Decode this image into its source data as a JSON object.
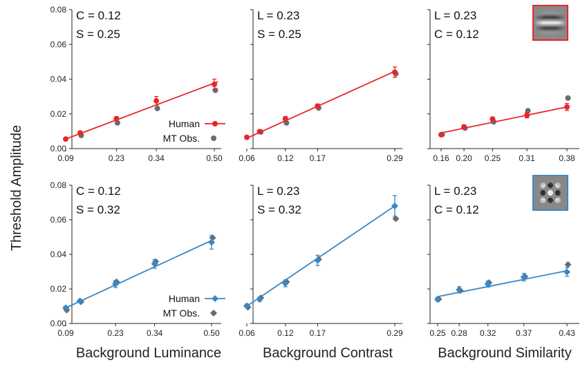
{
  "figure": {
    "ylabel": "Threshold Amplitude",
    "colors": {
      "red": "#e8262a",
      "blue": "#3a87c4",
      "gray": "#6b6b6b"
    }
  },
  "chart_data": [
    {
      "type": "scatter",
      "xlabel": "Background Luminance",
      "annotations": [
        "C = 0.12",
        "S = 0.25"
      ],
      "xticks": [
        "0.09",
        "0.23",
        "0.34",
        "0.50"
      ],
      "xtick_values": [
        0.09,
        0.23,
        0.34,
        0.5
      ],
      "ylim": [
        0,
        0.08
      ],
      "yticks": [
        "0.00",
        "0.02",
        "0.04",
        "0.06",
        "0.08"
      ],
      "legend": [
        "Human",
        "MT Obs."
      ],
      "marker": "circle",
      "series": [
        {
          "name": "Human",
          "x": [
            0.09,
            0.13,
            0.23,
            0.34,
            0.5
          ],
          "y": [
            0.0055,
            0.009,
            0.0172,
            0.0275,
            0.037
          ],
          "err": [
            0.0006,
            0.0008,
            0.0012,
            0.0025,
            0.003
          ]
        },
        {
          "name": "MT Obs.",
          "x": [
            0.13,
            0.23,
            0.34,
            0.5
          ],
          "y": [
            0.008,
            0.0152,
            0.0235,
            0.034
          ]
        }
      ],
      "fit_line": {
        "x": [
          0.09,
          0.51
        ],
        "y": [
          0.0055,
          0.0385
        ]
      }
    },
    {
      "type": "scatter",
      "xlabel": "Background Contrast",
      "annotations": [
        "L = 0.23",
        "S = 0.25"
      ],
      "xticks": [
        "0.06",
        "0.12",
        "0.17",
        "0.29"
      ],
      "xtick_values": [
        0.06,
        0.12,
        0.17,
        0.29
      ],
      "ylim": [
        0,
        0.08
      ],
      "yticks": [
        "",
        "",
        "",
        "",
        ""
      ],
      "legend": [],
      "marker": "circle",
      "series": [
        {
          "name": "Human",
          "x": [
            0.06,
            0.08,
            0.12,
            0.17,
            0.29
          ],
          "y": [
            0.0065,
            0.0098,
            0.0172,
            0.0245,
            0.044
          ],
          "err": [
            0.0005,
            0.0008,
            0.0012,
            0.0012,
            0.003
          ]
        },
        {
          "name": "MT Obs.",
          "x": [
            0.08,
            0.12,
            0.17,
            0.29
          ],
          "y": [
            0.01,
            0.0152,
            0.0238,
            0.0435
          ]
        }
      ],
      "fit_line": {
        "x": [
          0.06,
          0.29
        ],
        "y": [
          0.006,
          0.0445
        ]
      }
    },
    {
      "type": "scatter",
      "xlabel": "Background Similarity",
      "annotations": [
        "L = 0.23",
        "C = 0.12"
      ],
      "xticks": [
        "0.16",
        "0.20",
        "0.25",
        "0.31",
        "0.38"
      ],
      "xtick_values": [
        0.16,
        0.2,
        0.25,
        0.31,
        0.38
      ],
      "ylim": [
        0,
        0.08
      ],
      "yticks": [
        "",
        "",
        "",
        "",
        ""
      ],
      "legend": [],
      "marker": "circle",
      "series": [
        {
          "name": "Human",
          "x": [
            0.16,
            0.2,
            0.25,
            0.31,
            0.38
          ],
          "y": [
            0.008,
            0.0125,
            0.017,
            0.0192,
            0.024
          ],
          "err": [
            0.0008,
            0.0012,
            0.0012,
            0.0015,
            0.002
          ]
        },
        {
          "name": "MT Obs.",
          "x": [
            0.16,
            0.2,
            0.25,
            0.31,
            0.38
          ],
          "y": [
            0.0085,
            0.0122,
            0.0158,
            0.0222,
            0.0295
          ]
        }
      ],
      "fit_line": {
        "x": [
          0.16,
          0.38
        ],
        "y": [
          0.009,
          0.024
        ]
      }
    },
    {
      "type": "scatter",
      "xlabel": "Background Luminance",
      "annotations": [
        "C = 0.12",
        "S = 0.32"
      ],
      "xticks": [
        "0.09",
        "0.23",
        "0.34",
        "0.50"
      ],
      "xtick_values": [
        0.09,
        0.23,
        0.34,
        0.5
      ],
      "ylim": [
        0,
        0.08
      ],
      "yticks": [
        "0.00",
        "0.02",
        "0.04",
        "0.06",
        "0.08"
      ],
      "legend": [
        "Human",
        "MT Obs."
      ],
      "marker": "diamond",
      "series": [
        {
          "name": "Human",
          "x": [
            0.09,
            0.13,
            0.23,
            0.34,
            0.5
          ],
          "y": [
            0.009,
            0.013,
            0.0228,
            0.0345,
            0.047
          ],
          "err": [
            0.001,
            0.0008,
            0.002,
            0.0025,
            0.004
          ]
        },
        {
          "name": "MT Obs.",
          "x": [
            0.09,
            0.13,
            0.23,
            0.34,
            0.5
          ],
          "y": [
            0.0082,
            0.013,
            0.0245,
            0.0362,
            0.05
          ]
        }
      ],
      "fit_line": {
        "x": [
          0.09,
          0.5
        ],
        "y": [
          0.009,
          0.048
        ]
      }
    },
    {
      "type": "scatter",
      "xlabel": "Background Contrast",
      "annotations": [
        "L = 0.23",
        "S = 0.32"
      ],
      "xticks": [
        "0.06",
        "0.12",
        "0.17",
        "0.29"
      ],
      "xtick_values": [
        0.06,
        0.12,
        0.17,
        0.29
      ],
      "ylim": [
        0,
        0.08
      ],
      "yticks": [
        "",
        "",
        "",
        "",
        ""
      ],
      "legend": [],
      "marker": "diamond",
      "series": [
        {
          "name": "Human",
          "x": [
            0.06,
            0.08,
            0.12,
            0.17,
            0.29
          ],
          "y": [
            0.0102,
            0.014,
            0.0232,
            0.0365,
            0.068
          ],
          "err": [
            0.001,
            0.0012,
            0.002,
            0.003,
            0.006
          ]
        },
        {
          "name": "MT Obs.",
          "x": [
            0.06,
            0.08,
            0.12,
            0.17,
            0.29
          ],
          "y": [
            0.0098,
            0.0152,
            0.0245,
            0.0375,
            0.061
          ]
        }
      ],
      "fit_line": {
        "x": [
          0.06,
          0.29
        ],
        "y": [
          0.01,
          0.068
        ]
      }
    },
    {
      "type": "scatter",
      "xlabel": "Background Similarity",
      "annotations": [
        "L = 0.23",
        "C = 0.12"
      ],
      "xticks": [
        "0.25",
        "0.28",
        "0.32",
        "0.37",
        "0.43"
      ],
      "xtick_values": [
        0.25,
        0.28,
        0.32,
        0.37,
        0.43
      ],
      "ylim": [
        0,
        0.08
      ],
      "yticks": [
        "",
        "",
        "",
        "",
        ""
      ],
      "legend": [],
      "marker": "diamond",
      "series": [
        {
          "name": "Human",
          "x": [
            0.25,
            0.28,
            0.32,
            0.37,
            0.43
          ],
          "y": [
            0.014,
            0.0195,
            0.0228,
            0.0268,
            0.0298
          ],
          "err": [
            0.0012,
            0.0018,
            0.0018,
            0.0022,
            0.0025
          ]
        },
        {
          "name": "MT Obs.",
          "x": [
            0.25,
            0.28,
            0.32,
            0.37,
            0.43
          ],
          "y": [
            0.0145,
            0.0195,
            0.024,
            0.0275,
            0.0345
          ]
        }
      ],
      "fit_line": {
        "x": [
          0.25,
          0.43
        ],
        "y": [
          0.0155,
          0.0305
        ]
      }
    }
  ]
}
